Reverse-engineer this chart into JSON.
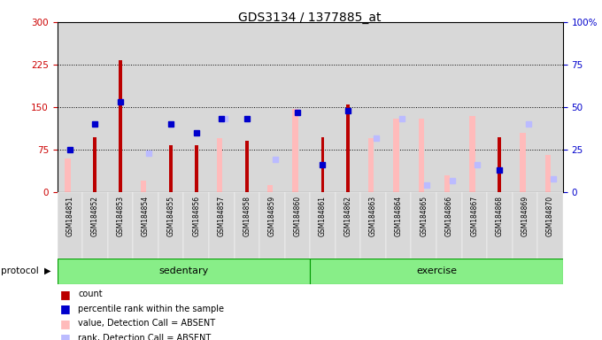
{
  "title": "GDS3134 / 1377885_at",
  "samples": [
    "GSM184851",
    "GSM184852",
    "GSM184853",
    "GSM184854",
    "GSM184855",
    "GSM184856",
    "GSM184857",
    "GSM184858",
    "GSM184859",
    "GSM184860",
    "GSM184861",
    "GSM184862",
    "GSM184863",
    "GSM184864",
    "GSM184865",
    "GSM184866",
    "GSM184867",
    "GSM184868",
    "GSM184869",
    "GSM184870"
  ],
  "groups": [
    "sedentary",
    "exercise"
  ],
  "sedentary_count": 10,
  "exercise_count": 10,
  "red_bars": [
    0,
    97,
    232,
    0,
    83,
    83,
    0,
    90,
    0,
    0,
    97,
    155,
    0,
    0,
    0,
    0,
    0,
    97,
    0,
    0
  ],
  "blue_squares": [
    25,
    40,
    53,
    0,
    40,
    35,
    43,
    43,
    0,
    47,
    16,
    48,
    0,
    0,
    0,
    0,
    0,
    13,
    0,
    0
  ],
  "pink_bars": [
    20,
    0,
    0,
    7,
    0,
    0,
    32,
    0,
    4,
    49,
    0,
    0,
    32,
    43,
    43,
    10,
    45,
    0,
    35,
    22
  ],
  "light_blue_sq": [
    0,
    0,
    0,
    23,
    0,
    0,
    43,
    0,
    19,
    0,
    0,
    0,
    32,
    43,
    4,
    7,
    16,
    0,
    40,
    8
  ],
  "left_yticks": [
    0,
    75,
    150,
    225,
    300
  ],
  "right_yticks": [
    0,
    25,
    50,
    75,
    100
  ],
  "ylim_left": [
    0,
    300
  ],
  "ylim_right": [
    0,
    100
  ],
  "left_tick_color": "#cc0000",
  "right_tick_color": "#0000cc",
  "red_bar_color": "#bb0000",
  "blue_sq_color": "#0000cc",
  "pink_bar_color": "#ffbbbb",
  "lblue_sq_color": "#bbbbff",
  "group_fill": "#88ee88",
  "group_edge": "#009900",
  "plot_bg": "#ffffff",
  "col_bg": "#d8d8d8",
  "bar_width": 0.25,
  "sq_size": 5
}
